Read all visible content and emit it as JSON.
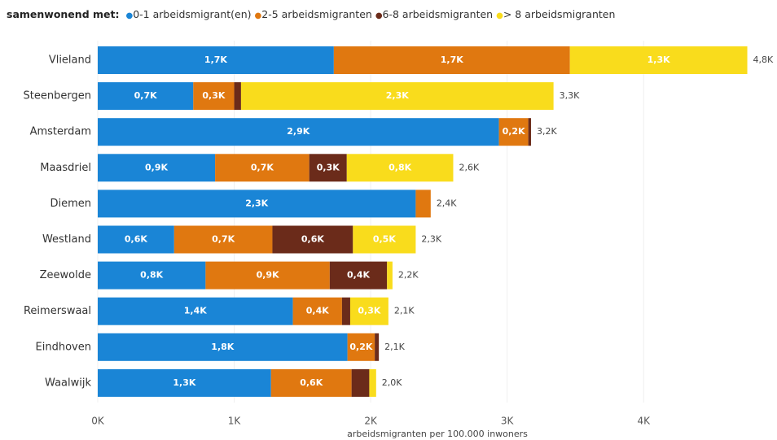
{
  "chart_data": {
    "type": "stacked-barh",
    "legend_title": "samenwonend met:",
    "x_label": "arbeidsmigranten per 100.000 inwoners",
    "categories": [
      "Vlieland",
      "Steenbergen",
      "Amsterdam",
      "Maasdriel",
      "Diemen",
      "Westland",
      "Zeewolde",
      "Reimerswaal",
      "Eindhoven",
      "Waalwijk"
    ],
    "series": [
      {
        "name": "0-1 arbeidsmigrant(en)",
        "color": "#1a85d6",
        "label_color": "#ffffff",
        "values": [
          1730,
          700,
          2940,
          860,
          2330,
          560,
          790,
          1430,
          1830,
          1270
        ],
        "value_labels": [
          "1,7K",
          "0,7K",
          "2,9K",
          "0,9K",
          "2,3K",
          "0,6K",
          "0,8K",
          "1,4K",
          "1,8K",
          "1,3K"
        ]
      },
      {
        "name": "2-5 arbeidsmigranten",
        "color": "#e07810",
        "label_color": "#ffffff",
        "values": [
          1730,
          300,
          215,
          690,
          110,
          720,
          910,
          360,
          200,
          590
        ],
        "value_labels": [
          "1,7K",
          "0,3K",
          "0,2K",
          "0,7K",
          null,
          "0,7K",
          "0,9K",
          "0,4K",
          "0,2K",
          "0,6K"
        ]
      },
      {
        "name": "6-8 arbeidsmigranten",
        "color": "#6b2b1a",
        "label_color": "#ffffff",
        "values": [
          0,
          50,
          20,
          275,
          0,
          590,
          420,
          60,
          30,
          130
        ],
        "value_labels": [
          null,
          null,
          null,
          "0,3K",
          null,
          "0,6K",
          "0,4K",
          null,
          null,
          null
        ]
      },
      {
        "name": "> 8 arbeidsmigranten",
        "color": "#f9dc1c",
        "label_color": "#ffffff",
        "values": [
          1300,
          2290,
          0,
          780,
          0,
          460,
          40,
          280,
          0,
          50
        ],
        "value_labels": [
          "1,3K",
          "2,3K",
          null,
          "0,8K",
          null,
          "0,5K",
          null,
          "0,3K",
          null,
          null
        ]
      }
    ],
    "total_labels": [
      "4,8K",
      "3,3K",
      "3,2K",
      "2,6K",
      "2,4K",
      "2,3K",
      "2,2K",
      "2,1K",
      "2,1K",
      "2,0K"
    ],
    "xlim": [
      0,
      4900
    ],
    "xticks": [
      {
        "value": 0,
        "label": "0K"
      },
      {
        "value": 1000,
        "label": "1K"
      },
      {
        "value": 2000,
        "label": "2K"
      },
      {
        "value": 3000,
        "label": "3K"
      },
      {
        "value": 4000,
        "label": "4K"
      }
    ],
    "grid": true
  }
}
